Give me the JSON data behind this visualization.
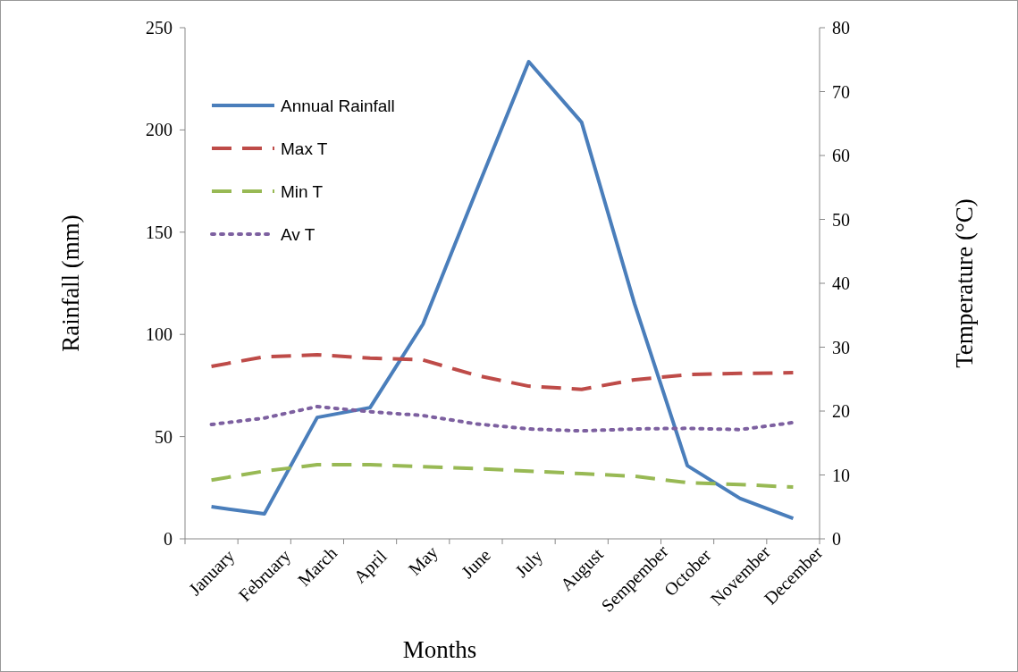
{
  "chart_data": {
    "type": "line",
    "xlabel": "Months",
    "ylabel": "Rainfall (mm)",
    "y2label": "Temperature (°C)",
    "categories": [
      "January",
      "February",
      "March",
      "April",
      "May",
      "June",
      "July",
      "August",
      "Sempember",
      "October",
      "November",
      "December"
    ],
    "series": [
      {
        "name": "Annual Rainfall",
        "color": "#4a7ebb",
        "line_style": "solid",
        "values": [
          15.7,
          12.2,
          59.4,
          64.2,
          105,
          169.6,
          233.4,
          203.7,
          115,
          35.8,
          19.7,
          10
        ]
      },
      {
        "name": "Max T",
        "color": "#be4b48",
        "line_style": "dashed",
        "axis": "y2",
        "values": [
          27,
          28.5,
          28.8,
          28.3,
          28,
          25.6,
          23.9,
          23.4,
          24.9,
          25.7,
          25.9,
          26
        ]
      },
      {
        "name": "Min T",
        "color": "#98b954",
        "line_style": "dashed",
        "axis": "y2",
        "values": [
          9.2,
          10.6,
          11.6,
          11.6,
          11.3,
          11,
          10.6,
          10.2,
          9.8,
          8.8,
          8.5,
          8.1
        ]
      },
      {
        "name": "Av T",
        "color": "#7d60a0",
        "line_style": "dotted",
        "axis": "y2",
        "values": [
          17.9,
          18.9,
          20.7,
          19.9,
          19.3,
          18,
          17.2,
          16.9,
          17.2,
          17.3,
          17.1,
          18.2
        ]
      }
    ],
    "ylim": [
      0,
      250
    ],
    "yticks": [
      0,
      50,
      100,
      150,
      200,
      250
    ],
    "y2lim": [
      0,
      80
    ],
    "y2ticks": [
      0,
      10,
      20,
      30,
      40,
      50,
      60,
      70,
      80
    ],
    "legend": "top left",
    "grid": false,
    "marker": "none"
  }
}
